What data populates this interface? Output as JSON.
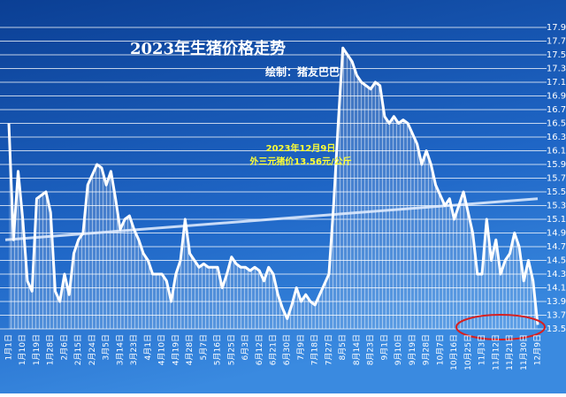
{
  "chart_data": {
    "type": "area-line",
    "title": "2023年生猪价格走势",
    "subtitle": "绘制：猪友巴巴",
    "annotation": [
      "2023年12月9日",
      "外三元猪价13.56元/公斤"
    ],
    "categories": [
      "1月1日",
      null,
      null,
      "1月10日",
      null,
      null,
      "1月19日",
      null,
      null,
      "1月28日",
      null,
      null,
      "2月6日",
      null,
      null,
      "2月15日",
      null,
      null,
      "2月24日",
      null,
      null,
      "3月5日",
      null,
      null,
      "3月14日",
      null,
      null,
      "3月23日",
      null,
      null,
      "4月1日",
      null,
      null,
      "4月10日",
      null,
      null,
      "4月19日",
      null,
      null,
      "4月28日",
      null,
      null,
      "5月7日",
      null,
      null,
      "5月16日",
      null,
      null,
      "5月25日",
      null,
      null,
      "6月3日",
      null,
      null,
      "6月12日",
      null,
      null,
      "6月21日",
      null,
      null,
      "6月30日",
      null,
      null,
      "7月9日",
      null,
      null,
      "7月18日",
      null,
      null,
      "7月27日",
      null,
      null,
      "8月5日",
      null,
      null,
      "8月14日",
      null,
      null,
      "8月23日",
      null,
      null,
      "9月1日",
      null,
      null,
      "9月10日",
      null,
      null,
      "9月19日",
      null,
      null,
      "9月28日",
      null,
      null,
      "10月7日",
      null,
      null,
      "10月16日",
      null,
      null,
      "10月25日",
      null,
      null,
      "11月3日",
      null,
      null,
      "11月12日",
      null,
      null,
      "11月21日",
      null,
      null,
      "11月30日",
      null,
      null,
      "12月9日"
    ],
    "values": [
      16.5,
      14.8,
      15.8,
      15.1,
      14.2,
      14.05,
      15.4,
      15.45,
      15.5,
      15.2,
      14.05,
      13.9,
      14.3,
      14.0,
      14.6,
      14.8,
      14.9,
      15.6,
      15.75,
      15.9,
      15.85,
      15.6,
      15.8,
      15.4,
      14.95,
      15.1,
      15.15,
      14.95,
      14.8,
      14.6,
      14.5,
      14.3,
      14.3,
      14.3,
      14.2,
      13.9,
      14.3,
      14.5,
      15.1,
      14.6,
      14.5,
      14.4,
      14.45,
      14.4,
      14.4,
      14.4,
      14.1,
      14.3,
      14.55,
      14.45,
      14.4,
      14.4,
      14.35,
      14.4,
      14.35,
      14.2,
      14.4,
      14.3,
      14.0,
      13.8,
      13.65,
      13.85,
      14.1,
      13.9,
      14.0,
      13.9,
      13.85,
      14.0,
      14.15,
      14.3,
      15.3,
      16.5,
      17.6,
      17.5,
      17.4,
      17.2,
      17.1,
      17.05,
      17.0,
      17.1,
      17.05,
      16.6,
      16.5,
      16.6,
      16.5,
      16.55,
      16.5,
      16.35,
      16.2,
      15.9,
      16.1,
      15.9,
      15.6,
      15.45,
      15.3,
      15.4,
      15.1,
      15.3,
      15.5,
      15.2,
      14.9,
      14.3,
      14.3,
      15.1,
      14.5,
      14.8,
      14.3,
      14.5,
      14.6,
      14.9,
      14.7,
      14.2,
      14.5,
      14.2,
      13.56
    ],
    "trendline": [
      14.8,
      15.4
    ],
    "color": "#ffffff",
    "ylim": [
      13.5,
      17.9
    ],
    "yticks": [
      13.5,
      13.7,
      13.9,
      14.1,
      14.3,
      14.5,
      14.7,
      14.9,
      15.1,
      15.3,
      15.5,
      15.7,
      15.9,
      16.1,
      16.3,
      16.5,
      16.7,
      16.9,
      17.1,
      17.3,
      17.5,
      17.7,
      17.9
    ],
    "grid": true
  }
}
